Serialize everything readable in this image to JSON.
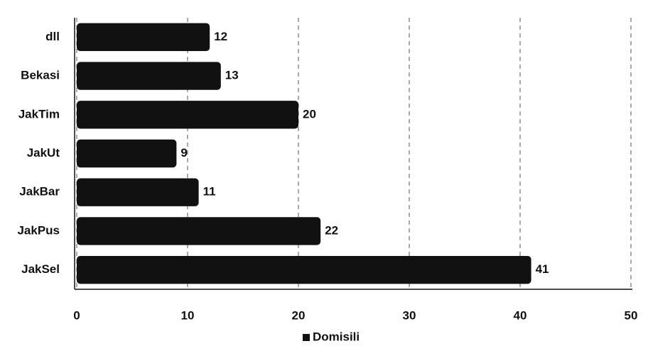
{
  "chart_data": {
    "type": "bar",
    "orientation": "horizontal",
    "categories": [
      "dll",
      "Bekasi",
      "JakTim",
      "JakUt",
      "JakBar",
      "JakPus",
      "JakSel"
    ],
    "series": [
      {
        "name": "Domisili",
        "color": "#111111",
        "values": [
          12,
          13,
          20,
          9,
          11,
          22,
          41
        ]
      }
    ],
    "xlim": [
      0,
      50
    ],
    "xticks": [
      0,
      10,
      20,
      30,
      40,
      50
    ],
    "grid": true,
    "legend": "bottom"
  }
}
